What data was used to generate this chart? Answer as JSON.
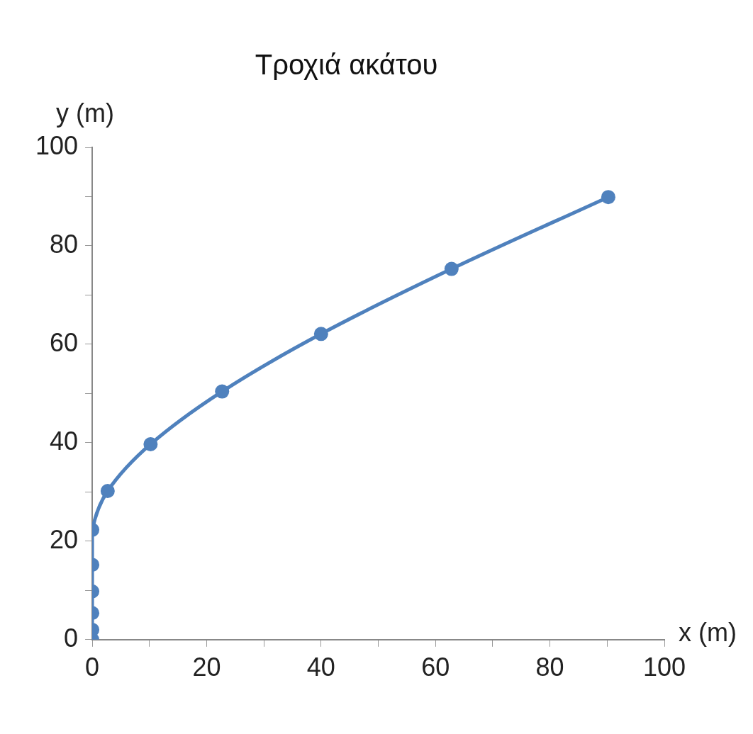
{
  "chart_data": {
    "type": "line",
    "title": "Τροχιά ακάτου",
    "xlabel": "x (m)",
    "ylabel": "y (m)",
    "x": [
      0,
      0,
      0,
      0,
      0,
      0,
      2.7,
      10.2,
      22.7,
      40,
      62.8,
      90.2
    ],
    "series": [
      {
        "color": "#4f81bd",
        "values": [
          0,
          2,
          5.4,
          9.8,
          15.2,
          22.3,
          30.2,
          39.7,
          50.4,
          62.1,
          75.3,
          89.9
        ]
      }
    ],
    "xlim": [
      0,
      100
    ],
    "ylim": [
      0,
      100
    ],
    "xticks": [
      0,
      {
        "value": 10,
        "label": null
      },
      20,
      {
        "value": 30,
        "label": null
      },
      40,
      {
        "value": 50,
        "label": null
      },
      60,
      {
        "value": 70,
        "label": null
      },
      80,
      {
        "value": 90,
        "label": null
      },
      100
    ],
    "yticks": [
      0,
      {
        "value": 10,
        "label": null
      },
      20,
      {
        "value": 30,
        "label": null
      },
      40,
      {
        "value": 50,
        "label": null
      },
      60,
      {
        "value": 70,
        "label": null
      },
      80,
      {
        "value": 90,
        "label": null
      },
      100
    ],
    "grid": false,
    "legend": false,
    "marker": "circle",
    "line_style": "solid"
  }
}
